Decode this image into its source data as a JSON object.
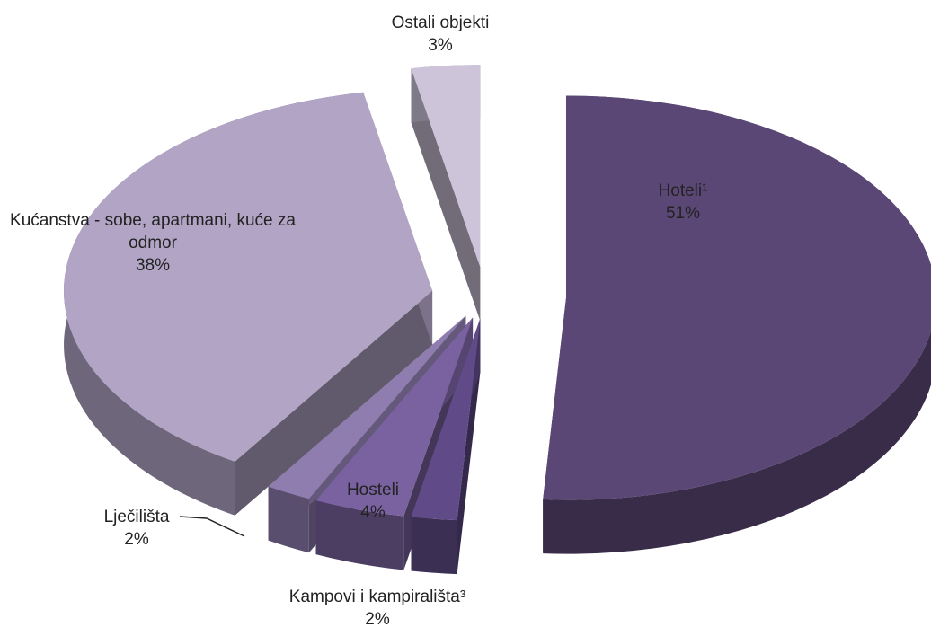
{
  "chart_data": {
    "type": "pie",
    "categories": [
      "Hoteli¹",
      "Kampovi i kampirališta³",
      "Hosteli",
      "Lječilišta",
      "Kućanstva - sobe, apartmani, kuće za odmor",
      "Ostali objekti"
    ],
    "values": [
      51,
      2,
      4,
      2,
      38,
      3
    ],
    "value_labels": [
      "51%",
      "2%",
      "4%",
      "2%",
      "38%",
      "3%"
    ],
    "colors": [
      "#5a4775",
      "#604b88",
      "#7a62a0",
      "#8f7db0",
      "#b1a4c5",
      "#cdc4da"
    ]
  }
}
